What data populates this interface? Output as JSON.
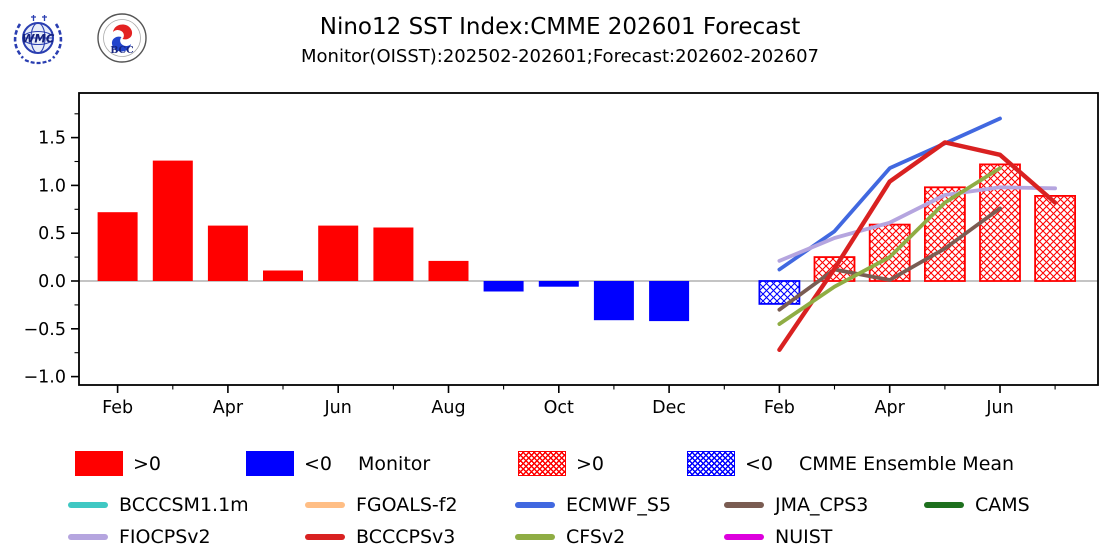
{
  "header": {
    "title": "Nino12 SST Index:CMME 202601 Forecast",
    "subtitle": "Monitor(OISST):202502-202601;Forecast:202602-202607"
  },
  "logos": {
    "left_name": "WMC",
    "right_name": "BCC"
  },
  "colors": {
    "bar_positive": "#ff0000",
    "bar_negative": "#0000ff",
    "zero_line": "#a0a0a0",
    "axis": "#000000"
  },
  "chart_data": {
    "type": "bar+line",
    "title": "Nino12 SST Index:CMME 202601 Forecast",
    "subtitle": "Monitor(OISST):202502-202601;Forecast:202602-202607",
    "ylim": [
      -1.09,
      1.97
    ],
    "yticks": [
      1.5,
      1.0,
      0.5,
      0.0,
      -0.5,
      -1.0
    ],
    "grid": "zero-line-only",
    "legend_position": "bottom",
    "x_months": [
      "Feb",
      "Mar",
      "Apr",
      "May",
      "Jun",
      "Jul",
      "Aug",
      "Sep",
      "Oct",
      "Nov",
      "Dec",
      "Jan",
      "Feb",
      "Mar",
      "Apr",
      "May",
      "Jun",
      "Jul"
    ],
    "x_labeled_indices": [
      0,
      2,
      4,
      6,
      8,
      10,
      12,
      14,
      16
    ],
    "monitor_bars": {
      "label": "Monitor",
      "start_index": 0,
      "months": [
        "Feb",
        "Mar",
        "Apr",
        "May",
        "Jun",
        "Jul",
        "Aug",
        "Sep",
        "Oct",
        "Nov",
        "Dec",
        "Jan"
      ],
      "values": [
        0.72,
        1.26,
        0.58,
        0.11,
        0.58,
        0.56,
        0.21,
        -0.11,
        -0.06,
        -0.41,
        -0.42,
        0.0
      ]
    },
    "forecast_bars": {
      "label": "CMME Ensemble Mean",
      "start_index": 12,
      "months": [
        "Feb",
        "Mar",
        "Apr",
        "May",
        "Jun",
        "Jul"
      ],
      "values": [
        -0.24,
        0.25,
        0.59,
        0.98,
        1.22,
        0.89
      ]
    },
    "series": [
      {
        "name": "BCCCSM1.1m",
        "color": "#3fc8c3",
        "start_index": 12,
        "values": []
      },
      {
        "name": "FGOALS-f2",
        "color": "#ffbe85",
        "start_index": 12,
        "values": []
      },
      {
        "name": "ECMWF_S5",
        "color": "#4168e0",
        "start_index": 12,
        "values": [
          0.12,
          0.52,
          1.18,
          1.44,
          1.7
        ]
      },
      {
        "name": "JMA_CPS3",
        "color": "#7a5c52",
        "start_index": 12,
        "values": [
          -0.3,
          0.12,
          0.01,
          0.34,
          0.76
        ]
      },
      {
        "name": "CAMS",
        "color": "#1e701e",
        "start_index": 12,
        "values": []
      },
      {
        "name": "FIOCPSv2",
        "color": "#b5a5df",
        "start_index": 12,
        "values": [
          0.21,
          0.45,
          0.61,
          0.9,
          0.98,
          0.97
        ]
      },
      {
        "name": "BCCCPSv3",
        "color": "#d92121",
        "start_index": 12,
        "values": [
          -0.72,
          0.13,
          1.04,
          1.45,
          1.32,
          0.82
        ]
      },
      {
        "name": "CFSv2",
        "color": "#8fad44",
        "start_index": 12,
        "values": [
          -0.45,
          -0.06,
          0.25,
          0.82,
          1.18
        ]
      },
      {
        "name": "NUIST",
        "color": "#dd00dd",
        "start_index": 12,
        "values": []
      }
    ]
  },
  "legend": {
    "pos_label": ">0",
    "neg_label": "<0",
    "monitor_label": "Monitor",
    "pos_label2": ">0",
    "neg_label2": "<0",
    "cmme_label": "CMME Ensemble Mean"
  }
}
